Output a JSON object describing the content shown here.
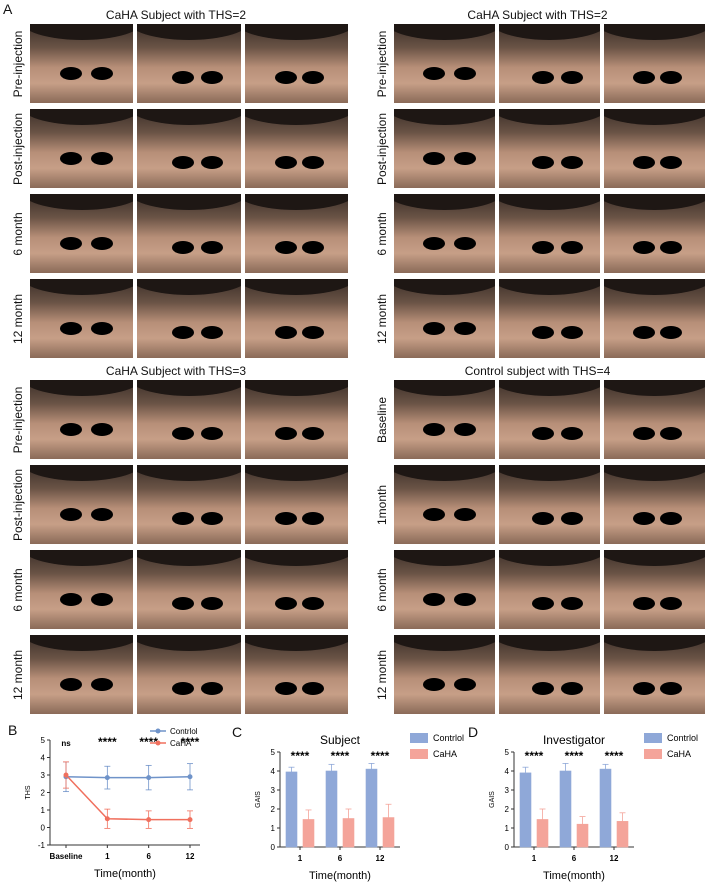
{
  "letters": {
    "a": "A",
    "b": "B",
    "c": "C",
    "d": "D"
  },
  "groups": [
    {
      "title": "CaHA Subject with THS=2",
      "rows": [
        "Pre-injection",
        "Post-injection",
        "6 month",
        "12 month"
      ]
    },
    {
      "title": "CaHA Subject with THS=2",
      "rows": [
        "Pre-injection",
        "Post-injection",
        "6 month",
        "12 month"
      ]
    },
    {
      "title": "CaHA Subject with THS=3",
      "rows": [
        "Pre-injection",
        "Post-injection",
        "6 month",
        "12 month"
      ]
    },
    {
      "title": "Control subject with THS=4",
      "rows": [
        "Baseline",
        "1month",
        "6 month",
        "12 month"
      ]
    }
  ],
  "chart_data": [
    {
      "type": "line",
      "ylabel": "THS",
      "xlabel": "Time(month)",
      "categories": [
        "Baseline",
        "1",
        "6",
        "12"
      ],
      "ylim": [
        -1,
        5
      ],
      "yticks": [
        "-1",
        "0",
        "1",
        "2",
        "3",
        "4",
        "5"
      ],
      "series": [
        {
          "name": "Contrlol",
          "color": "#6f93c9",
          "values": [
            2.9,
            2.85,
            2.85,
            2.9
          ],
          "err": [
            0.85,
            0.65,
            0.7,
            0.75
          ]
        },
        {
          "name": "CaHA",
          "color": "#f0705e",
          "values": [
            3.0,
            0.5,
            0.45,
            0.45
          ],
          "err": [
            0.75,
            0.55,
            0.5,
            0.5
          ]
        }
      ],
      "annotations": [
        "ns",
        "****",
        "****",
        "****"
      ]
    },
    {
      "type": "bar",
      "title": "Subject",
      "ylabel": "GAIS",
      "xlabel": "Time(month)",
      "categories": [
        "1",
        "6",
        "12"
      ],
      "ylim": [
        0,
        5
      ],
      "yticks": [
        "0",
        "1",
        "2",
        "3",
        "4",
        "5"
      ],
      "series": [
        {
          "name": "Contrlol",
          "color": "#8fa8d8",
          "values": [
            3.95,
            4.0,
            4.1
          ],
          "err": [
            0.25,
            0.35,
            0.3
          ]
        },
        {
          "name": "CaHA",
          "color": "#f4a49a",
          "values": [
            1.45,
            1.5,
            1.55
          ],
          "err": [
            0.5,
            0.5,
            0.7
          ]
        }
      ],
      "annotations": [
        "****",
        "****",
        "****"
      ]
    },
    {
      "type": "bar",
      "title": "Investigator",
      "ylabel": "GAIS",
      "xlabel": "Time(month)",
      "categories": [
        "1",
        "6",
        "12"
      ],
      "ylim": [
        0,
        5
      ],
      "yticks": [
        "0",
        "1",
        "2",
        "3",
        "4",
        "5"
      ],
      "series": [
        {
          "name": "Contrlol",
          "color": "#8fa8d8",
          "values": [
            3.9,
            4.0,
            4.1
          ],
          "err": [
            0.3,
            0.4,
            0.25
          ]
        },
        {
          "name": "CaHA",
          "color": "#f4a49a",
          "values": [
            1.45,
            1.2,
            1.35
          ],
          "err": [
            0.55,
            0.4,
            0.45
          ]
        }
      ],
      "annotations": [
        "****",
        "****",
        "****"
      ]
    }
  ]
}
